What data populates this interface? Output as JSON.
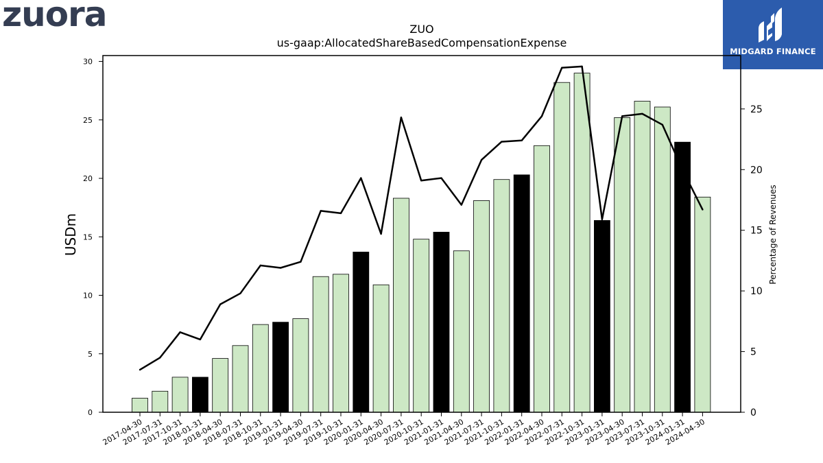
{
  "logos": {
    "left": "zuora",
    "right": "MIDGARD FINANCE",
    "right_bg": "#2c5cad"
  },
  "chart_data": {
    "type": "bar",
    "title": "ZUO",
    "subtitle": "us-gaap:AllocatedShareBasedCompensationExpense",
    "ylabel": "USDm",
    "y2label": "Percentage of Revenues",
    "ylim": [
      0,
      30.5
    ],
    "y2lim": [
      0,
      29.4
    ],
    "yticks": [
      0,
      5,
      10,
      15,
      20,
      25,
      30
    ],
    "y2ticks": [
      0,
      5,
      10,
      15,
      20,
      25
    ],
    "categories": [
      "2017-04-30",
      "2017-07-31",
      "2017-10-31",
      "2018-01-31",
      "2018-04-30",
      "2018-07-31",
      "2018-10-31",
      "2019-01-31",
      "2019-04-30",
      "2019-07-31",
      "2019-10-31",
      "2020-01-31",
      "2020-04-30",
      "2020-07-31",
      "2020-10-31",
      "2021-01-31",
      "2021-04-30",
      "2021-07-31",
      "2021-10-31",
      "2022-01-31",
      "2022-04-30",
      "2022-07-31",
      "2022-10-31",
      "2023-01-31",
      "2023-04-30",
      "2023-07-31",
      "2023-10-31",
      "2024-01-31",
      "2024-04-30"
    ],
    "series": [
      {
        "kind": "bar",
        "values": [
          1.2,
          1.8,
          3.0,
          3.0,
          4.6,
          5.7,
          7.5,
          7.7,
          8.0,
          11.6,
          11.8,
          13.7,
          10.9,
          18.3,
          14.8,
          15.4,
          13.8,
          18.1,
          19.9,
          20.3,
          22.8,
          28.2,
          29.0,
          16.4,
          25.2,
          26.6,
          26.1,
          23.1,
          18.4
        ],
        "highlight_categories": [
          "2018-01-31",
          "2019-01-31",
          "2020-01-31",
          "2021-01-31",
          "2022-01-31",
          "2023-01-31",
          "2024-01-31"
        ],
        "color": "#cde8c5",
        "highlight_color": "#000000"
      },
      {
        "kind": "line",
        "axis": "right",
        "values": [
          3.5,
          4.5,
          6.6,
          6.0,
          8.9,
          9.8,
          12.1,
          11.9,
          12.4,
          16.6,
          16.4,
          19.3,
          14.7,
          24.3,
          19.1,
          19.3,
          17.1,
          20.8,
          22.3,
          22.4,
          24.4,
          28.4,
          28.5,
          15.9,
          24.4,
          24.6,
          23.7,
          20.0,
          16.7
        ],
        "color": "#000000"
      }
    ],
    "grid": false,
    "legend": "none"
  }
}
